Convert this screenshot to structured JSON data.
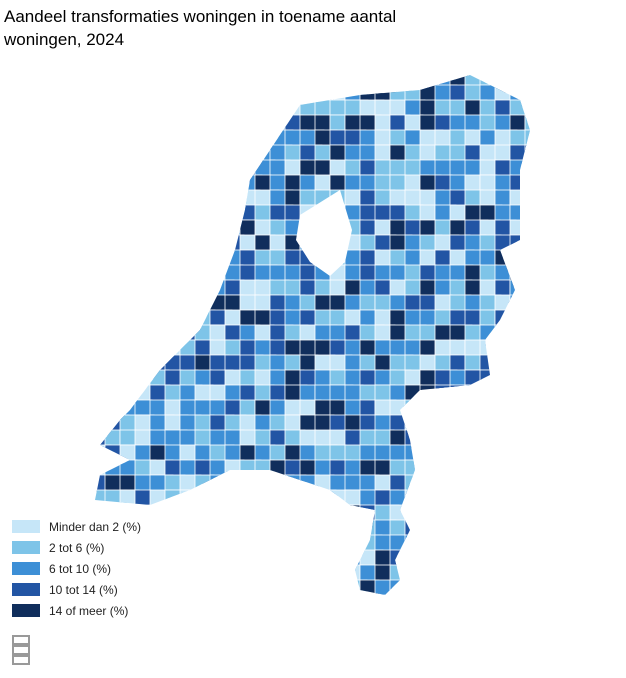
{
  "title_lines": [
    "Aandeel transformaties woningen in toename aantal",
    "woningen, 2024"
  ],
  "legend": [
    {
      "label": "Minder dan 2 (%)",
      "color": "#c6e6f8"
    },
    {
      "label": "2 tot 6 (%)",
      "color": "#7ec4e8"
    },
    {
      "label": "6 tot 10 (%)",
      "color": "#3d8fd6"
    },
    {
      "label": "10 tot 14 (%)",
      "color": "#2255a4"
    },
    {
      "label": "14 of meer (%)",
      "color": "#102e5c"
    }
  ],
  "logo": "cbs"
}
